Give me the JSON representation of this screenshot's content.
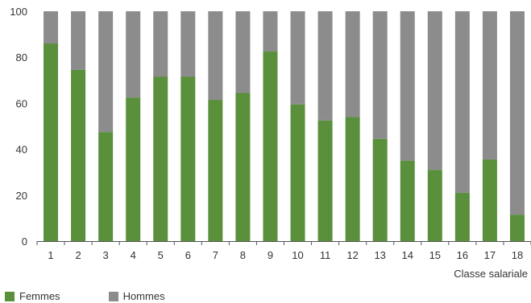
{
  "chart_data": {
    "type": "bar",
    "stacked": true,
    "title": "",
    "xlabel": "Classe salariale",
    "ylabel": "",
    "ylim": [
      0,
      100
    ],
    "yticks": [
      0,
      20,
      40,
      60,
      80,
      100
    ],
    "grid": false,
    "legend_position": "bottom-left",
    "categories": [
      "1",
      "2",
      "3",
      "4",
      "5",
      "6",
      "7",
      "8",
      "9",
      "10",
      "11",
      "12",
      "13",
      "14",
      "15",
      "16",
      "17",
      "18"
    ],
    "series": [
      {
        "name": "Femmes",
        "color": "#5a8f3c",
        "values": [
          86,
          74.5,
          47.5,
          62.5,
          71.5,
          71.5,
          61.5,
          64.5,
          82.5,
          59.5,
          52.5,
          54,
          44.5,
          35,
          31,
          21,
          35.5,
          11.5
        ]
      },
      {
        "name": "Hommes",
        "color": "#8c8c8c",
        "values": [
          14,
          25.5,
          52.5,
          37.5,
          28.5,
          28.5,
          38.5,
          35.5,
          17.5,
          40.5,
          47.5,
          46,
          55.5,
          65,
          69,
          79,
          64.5,
          88.5
        ]
      }
    ]
  }
}
